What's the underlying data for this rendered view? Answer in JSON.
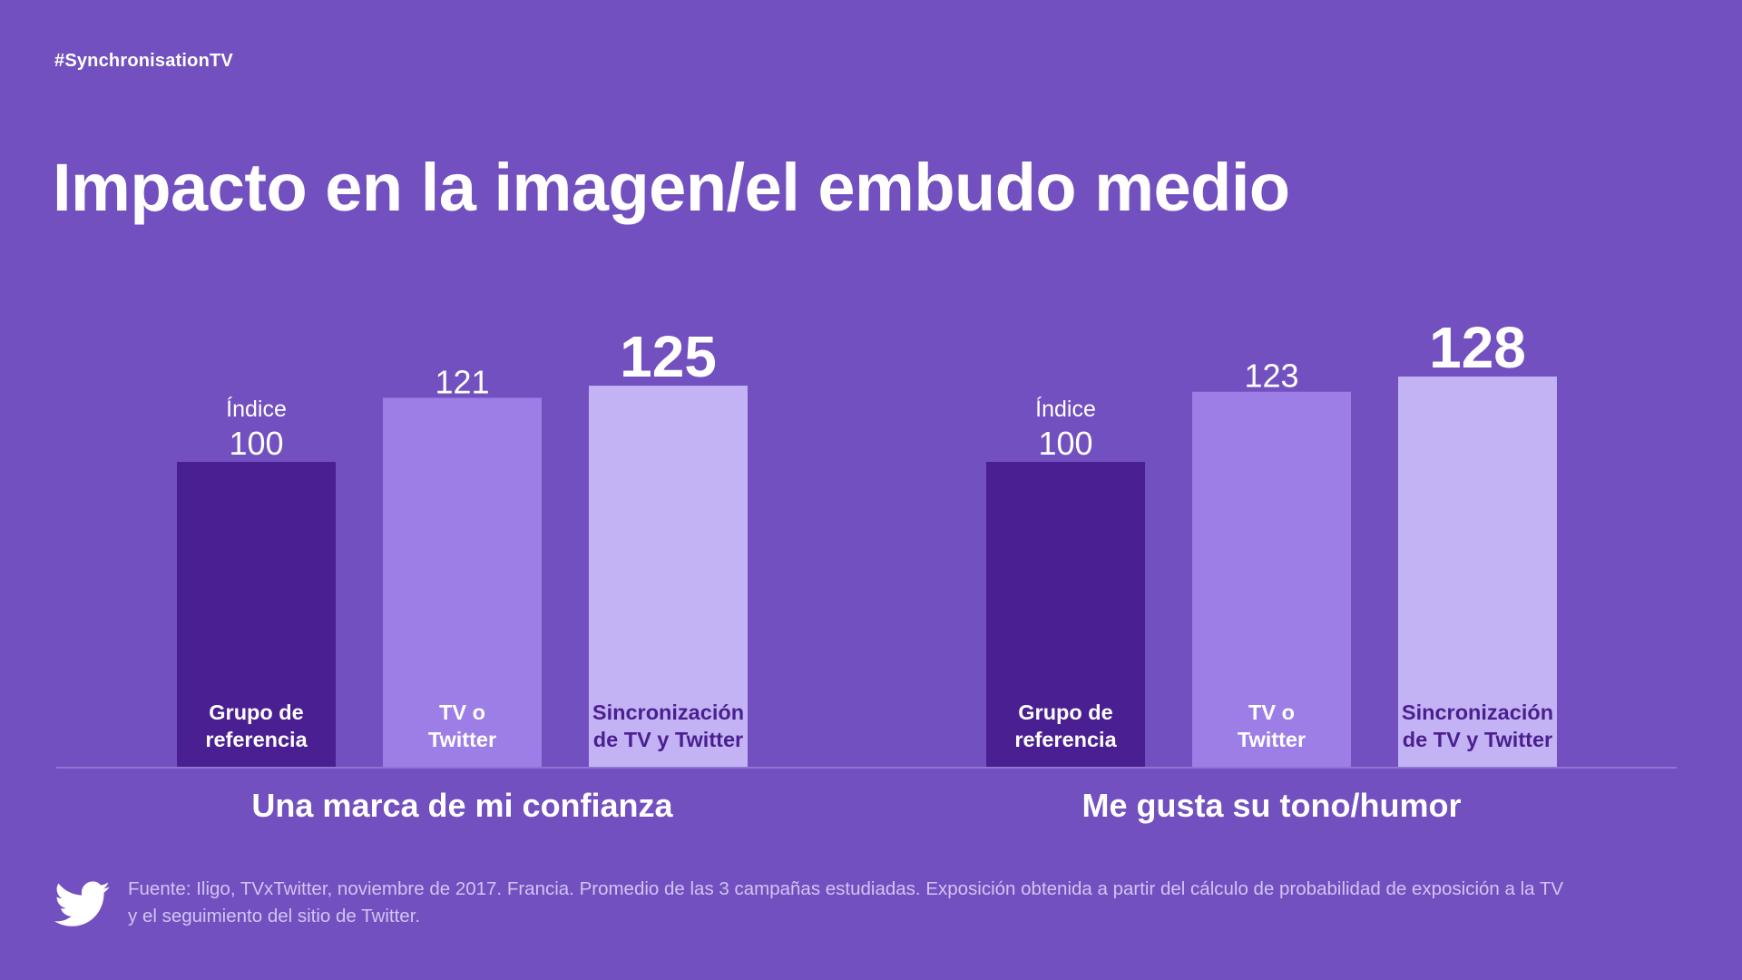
{
  "header": {
    "hashtag": "#SynchronisationTV",
    "title": "Impacto en la imagen/el embudo medio"
  },
  "colors": {
    "background": "#7250bf",
    "bar_reference": "#4a1f91",
    "bar_tv_or_twitter": "#9c7ee6",
    "bar_sync": "#c3b3f4",
    "label_dark": "#4a1f91",
    "baseline": "#9a82d8"
  },
  "chart_data": [
    {
      "type": "bar",
      "title": "Una marca de mi confianza",
      "categories": [
        "Grupo de referencia",
        "TV o Twitter",
        "Sincronización de TV y Twitter"
      ],
      "category_lines": [
        [
          "Grupo de",
          "referencia"
        ],
        [
          "TV o",
          "Twitter"
        ],
        [
          "Sincronización",
          "de TV y Twitter"
        ]
      ],
      "values": [
        100,
        121,
        125
      ],
      "value_labels": [
        "100",
        "121",
        "125"
      ],
      "index_label": "Índice",
      "ylim": [
        0,
        125
      ]
    },
    {
      "type": "bar",
      "title": "Me gusta su tono/humor",
      "categories": [
        "Grupo de referencia",
        "TV o Twitter",
        "Sincronización de TV y Twitter"
      ],
      "category_lines": [
        [
          "Grupo de",
          "referencia"
        ],
        [
          "TV o",
          "Twitter"
        ],
        [
          "Sincronización",
          "de TV y Twitter"
        ]
      ],
      "values": [
        100,
        123,
        128
      ],
      "value_labels": [
        "100",
        "123",
        "128"
      ],
      "index_label": "Índice",
      "ylim": [
        0,
        125
      ]
    }
  ],
  "footer": {
    "logo_icon": "twitter-bird-icon",
    "source_line1": "Fuente: Iligo, TVxTwitter, noviembre de 2017. Francia. Promedio de las 3 campañas estudiadas. Exposición obtenida a partir del cálculo de probabilidad de exposición a la TV",
    "source_line2": "y el seguimiento del sitio de Twitter."
  }
}
